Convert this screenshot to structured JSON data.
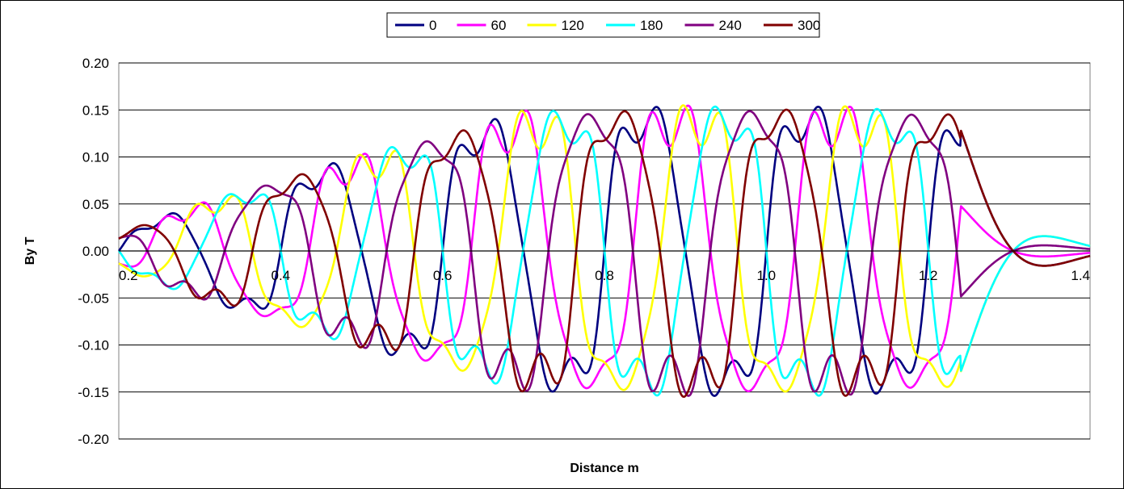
{
  "chart_data": {
    "type": "line",
    "title": "",
    "xlabel": "Distance m",
    "ylabel": "By T",
    "xlim": [
      0.2,
      1.4
    ],
    "ylim": [
      -0.2,
      0.2
    ],
    "x_ticks": [
      "0.2",
      "0.4",
      "0.6",
      "0.8",
      "1.0",
      "1.2",
      "1.4"
    ],
    "y_ticks": [
      "0.20",
      "0.15",
      "0.10",
      "0.05",
      "0.00",
      "-0.05",
      "-0.10",
      "-0.15",
      "-0.20"
    ],
    "grid": "horizontal",
    "legend_position": "top-center",
    "wave": {
      "period_m": 0.2,
      "phase_shift_m_per_series": 0.0333,
      "ripple_per_period": 4,
      "ripple_fraction": 0.11,
      "active_start_m": 0.2,
      "ramp_end_m": 0.7,
      "active_end_m": 1.24,
      "entry_amplitude": 0.018,
      "max_amplitude": 0.16,
      "tail_decay_m": 0.055
    },
    "series": [
      {
        "name": "0",
        "color": "#000080",
        "phase_index": 0
      },
      {
        "name": "60",
        "color": "#ff00ff",
        "phase_index": 1
      },
      {
        "name": "120",
        "color": "#ffff00",
        "phase_index": 2
      },
      {
        "name": "180",
        "color": "#00ffff",
        "phase_index": 3
      },
      {
        "name": "240",
        "color": "#800080",
        "phase_index": 4
      },
      {
        "name": "300",
        "color": "#800000",
        "phase_index": 5
      }
    ]
  }
}
